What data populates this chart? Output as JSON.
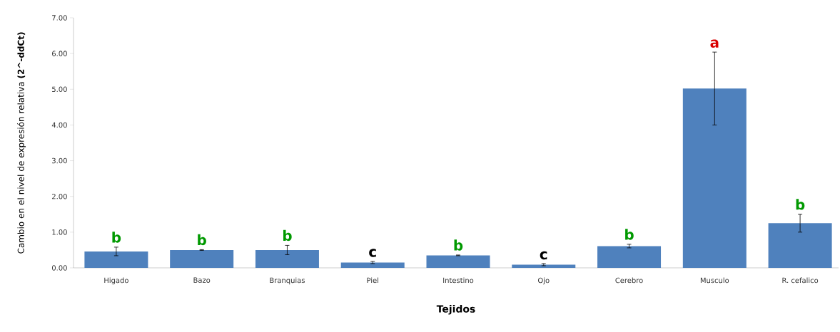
{
  "chart_data": {
    "type": "bar",
    "xlabel": "Tejidos",
    "ylabel": "Cambio en el nivel de expresión relativa **(2^-ddCt)**",
    "categories": [
      "Higado",
      "Bazo",
      "Branquias",
      "Piel",
      "Intestino",
      "Ojo",
      "Cerebro",
      "Musculo",
      "R. cefalico"
    ],
    "values": [
      0.46,
      0.5,
      0.5,
      0.15,
      0.35,
      0.09,
      0.61,
      5.02,
      1.25
    ],
    "errors": [
      0.12,
      0.01,
      0.13,
      0.03,
      0.01,
      0.03,
      0.05,
      1.02,
      0.25
    ],
    "color": "#4f81bd",
    "ylim": [
      0,
      7
    ],
    "yticks": [
      {
        "value": 0,
        "label": "0.00"
      },
      {
        "value": 1,
        "label": "1.00"
      },
      {
        "value": 2,
        "label": "2.00"
      },
      {
        "value": 3,
        "label": "3.00"
      },
      {
        "value": 4,
        "label": "4.00"
      },
      {
        "value": 5,
        "label": "5.00"
      },
      {
        "value": 6,
        "label": "6.00"
      },
      {
        "value": 7,
        "label": "7.00"
      }
    ],
    "grid": false,
    "annotations": [
      {
        "text": "b",
        "x": "Higado",
        "y": 0.58
      },
      {
        "text": "b",
        "x": "Bazo",
        "y": 0.51
      },
      {
        "text": "b",
        "x": "Branquias",
        "y": 0.63
      },
      {
        "text": "c",
        "x": "Piel",
        "y": 0.18
      },
      {
        "text": "b",
        "x": "Intestino",
        "y": 0.36
      },
      {
        "text": "c",
        "x": "Ojo",
        "y": 0.11
      },
      {
        "text": "b",
        "x": "Cerebro",
        "y": 0.66
      },
      {
        "text": "a",
        "x": "Musculo",
        "y": 6.04
      },
      {
        "text": "b",
        "x": "R. cefalico",
        "y": 1.5
      }
    ]
  }
}
